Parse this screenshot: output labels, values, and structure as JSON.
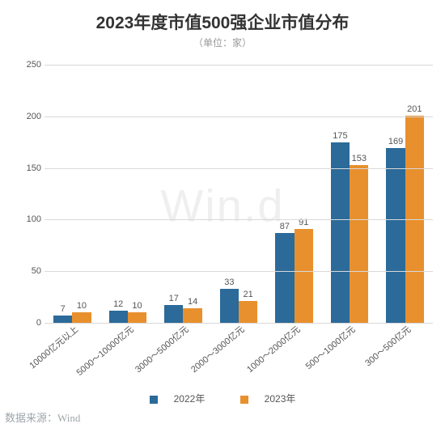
{
  "chart": {
    "type": "bar",
    "title": "2023年度市值500强企业市值分布",
    "title_fontsize": 21,
    "title_color": "#333333",
    "subtitle": "（单位：家）",
    "subtitle_fontsize": 12,
    "subtitle_color": "#999999",
    "watermark": "Win.d",
    "background_color": "#ffffff",
    "grid_color": "#d9d9d9",
    "label_fontsize": 11,
    "label_color": "#555555",
    "ylim": [
      0,
      250
    ],
    "ytick_step": 50,
    "yticks": [
      0,
      50,
      100,
      150,
      200,
      250
    ],
    "categories": [
      "10000亿元以上",
      "5000～10000亿元",
      "3000～5000亿元",
      "2000～3000亿元",
      "1000～2000亿元",
      "500～1000亿元",
      "300～500亿元"
    ],
    "x_label_rotation": -40,
    "series": [
      {
        "name": "2022年",
        "color": "#2b6a99",
        "values": [
          7,
          12,
          17,
          33,
          87,
          175,
          169
        ]
      },
      {
        "name": "2023年",
        "color": "#e8902e",
        "values": [
          10,
          10,
          14,
          21,
          91,
          153,
          201
        ]
      }
    ],
    "bar_width_ratio": 0.34,
    "group_gap_ratio": 0.28,
    "source": "数据来源：Wind"
  }
}
